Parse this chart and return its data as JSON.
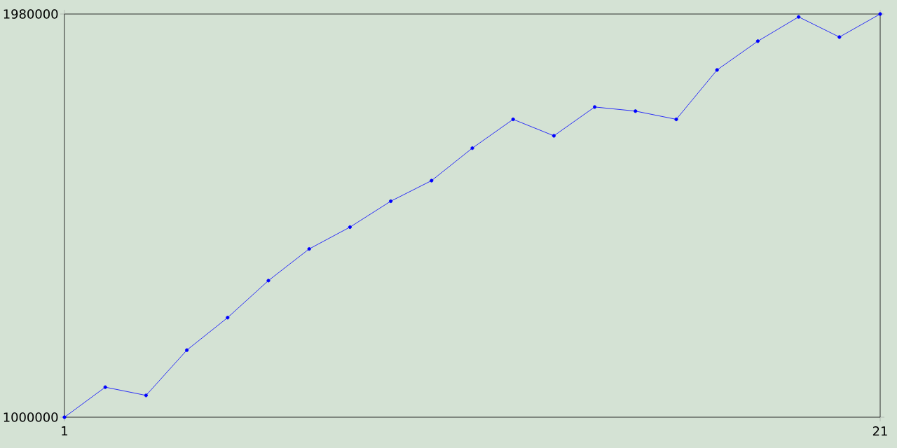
{
  "chart_data": {
    "type": "line",
    "x": [
      1,
      2,
      3,
      4,
      5,
      6,
      7,
      8,
      9,
      10,
      11,
      12,
      13,
      14,
      15,
      16,
      17,
      18,
      19,
      20,
      21
    ],
    "series": [
      {
        "color": "#0000ff",
        "values": [
          1000000,
          1073000,
          1053000,
          1163000,
          1242000,
          1332000,
          1409000,
          1462000,
          1525000,
          1575000,
          1654000,
          1724000,
          1684000,
          1754000,
          1744000,
          1724000,
          1844000,
          1914000,
          1973000,
          1924000,
          1980000
        ]
      }
    ],
    "xlim": [
      1,
      21
    ],
    "ylim": [
      1000000,
      1980000
    ],
    "xticks": [
      1,
      21
    ],
    "yticks": [
      1000000,
      1980000
    ],
    "marker": "circle",
    "line_style": "solid"
  }
}
